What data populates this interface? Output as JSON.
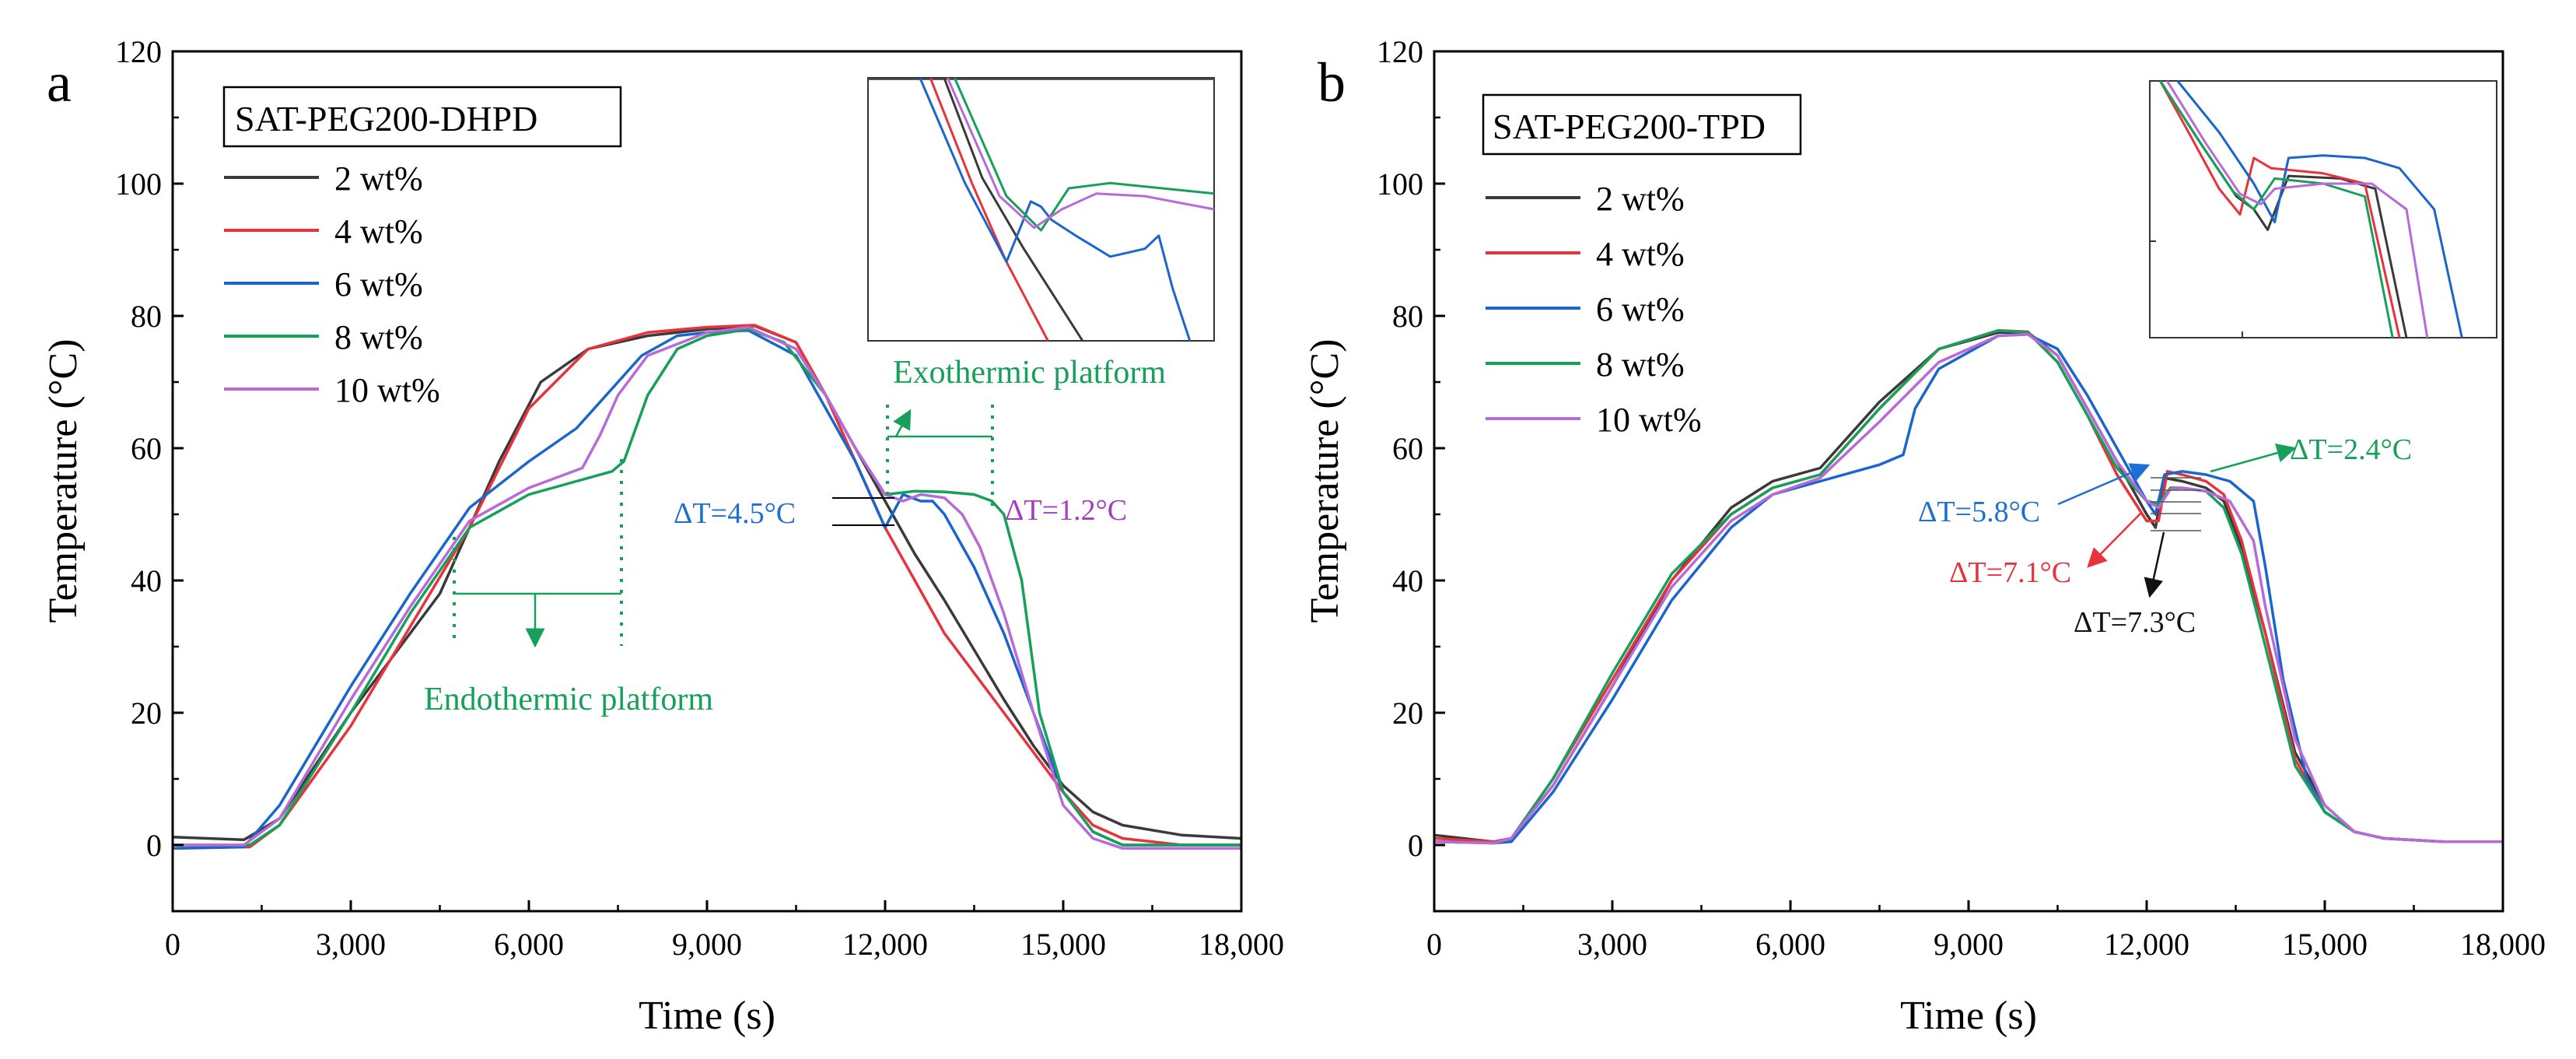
{
  "colors": {
    "2 wt%": "#3a3a3a",
    "4 wt%": "#e8323c",
    "6 wt%": "#1a66cc",
    "8 wt%": "#17a05a",
    "10 wt%": "#b86ad8",
    "axis": "#000000",
    "annot_blue": "#1f6fd0",
    "annot_green": "#17a05a",
    "annot_purple": "#a43cc4",
    "annot_red": "#e8323c",
    "annot_black": "#111111"
  },
  "chart_data": [
    {
      "type": "line",
      "panel_label": "a",
      "title": "SAT-PEG200-DHPD",
      "xlabel": "Time (s)",
      "ylabel": "Temperature (°C)",
      "xlim": [
        0,
        18000
      ],
      "ylim": [
        -10,
        120
      ],
      "xticks": [
        0,
        3000,
        6000,
        9000,
        12000,
        15000,
        18000
      ],
      "xtick_labels": [
        "0",
        "3,000",
        "6,000",
        "9,000",
        "12,000",
        "15,000",
        "18,000"
      ],
      "yticks": [
        0,
        20,
        40,
        60,
        80,
        100,
        120
      ],
      "ytick_labels": [
        "0",
        "20",
        "40",
        "60",
        "80",
        "100",
        "120"
      ],
      "legend": [
        "2 wt%",
        "4 wt%",
        "6 wt%",
        "8 wt%",
        "10 wt%"
      ],
      "series": [
        {
          "name": "2 wt%",
          "x": [
            0,
            1200,
            1800,
            3000,
            4500,
            5500,
            6200,
            7000,
            8000,
            9000,
            9800,
            10500,
            11000,
            11500,
            12000,
            12500,
            13000,
            14000,
            14500,
            15000,
            15500,
            16000,
            17000,
            18000
          ],
          "y": [
            1.2,
            0.8,
            4,
            20,
            38,
            58,
            70,
            75,
            77,
            78,
            78.5,
            76,
            68,
            60,
            52,
            44,
            37,
            22,
            15,
            9,
            5,
            3,
            1.5,
            1
          ]
        },
        {
          "name": "4 wt%",
          "x": [
            0,
            1300,
            1800,
            3000,
            4000,
            5000,
            6000,
            7000,
            8000,
            9000,
            9800,
            10500,
            11000,
            11500,
            12000,
            12500,
            13000,
            14000,
            15000,
            15500,
            16000,
            17000,
            18000
          ],
          "y": [
            -0.5,
            -0.3,
            3,
            18,
            33,
            48,
            66,
            75,
            77.5,
            78.3,
            78.6,
            76,
            68,
            58,
            48,
            40,
            32,
            20,
            8,
            3,
            1,
            0,
            0
          ]
        },
        {
          "name": "6 wt%",
          "x": [
            0,
            1200,
            1800,
            3000,
            4000,
            5000,
            6000,
            6800,
            7400,
            7900,
            8500,
            9000,
            9700,
            10500,
            11000,
            11500,
            12000,
            12300,
            12600,
            12800,
            13000,
            13500,
            14000,
            14500,
            15000,
            15500,
            16000,
            17000,
            18000
          ],
          "y": [
            -0.5,
            -0.3,
            6,
            24,
            38,
            51,
            58,
            63,
            69,
            74,
            77,
            77.5,
            77.8,
            74,
            66,
            58,
            48,
            53,
            52,
            52,
            50,
            42,
            32,
            20,
            8,
            2,
            0,
            0,
            0
          ]
        },
        {
          "name": "8 wt%",
          "x": [
            0,
            1300,
            1800,
            3000,
            4000,
            5000,
            6000,
            6800,
            7400,
            7600,
            8000,
            8500,
            9000,
            9700,
            10300,
            11000,
            11500,
            12000,
            12300,
            12500,
            13000,
            13500,
            13800,
            14000,
            14300,
            14600,
            15000,
            15500,
            16000,
            17000,
            18000
          ],
          "y": [
            0,
            0,
            3,
            20,
            35,
            48,
            53,
            55,
            56.5,
            58,
            68,
            75,
            77,
            78,
            76,
            68,
            60,
            53,
            53.3,
            53.5,
            53.4,
            53,
            52,
            50,
            40,
            20,
            8,
            2,
            0,
            0,
            0
          ]
        },
        {
          "name": "10 wt%",
          "x": [
            0,
            1200,
            1800,
            3000,
            4000,
            5000,
            6000,
            6900,
            7200,
            7500,
            8000,
            9000,
            9700,
            10500,
            11000,
            11500,
            12000,
            12300,
            12600,
            13000,
            13300,
            13600,
            14000,
            14500,
            15000,
            15500,
            16000,
            17000,
            18000
          ],
          "y": [
            0,
            0,
            4,
            22,
            36,
            49,
            54,
            57,
            62,
            68,
            74,
            77.5,
            78.3,
            75,
            68,
            60,
            53,
            52,
            53,
            52.5,
            50,
            45,
            35,
            20,
            6,
            1,
            -0.5,
            -0.5,
            -0.5
          ]
        }
      ],
      "inset": {
        "series": [
          {
            "name": "2 wt%",
            "x": [
              0.22,
              0.33,
              0.45,
              0.62
            ],
            "y": [
              1.05,
              0.62,
              0.35,
              -0.05
            ]
          },
          {
            "name": "4 wt%",
            "x": [
              0.18,
              0.3,
              0.4,
              0.52
            ],
            "y": [
              1.05,
              0.6,
              0.3,
              -0.05
            ]
          },
          {
            "name": "6 wt%",
            "x": [
              0.15,
              0.28,
              0.4,
              0.44,
              0.47,
              0.5,
              0.53,
              0.6,
              0.7,
              0.8,
              0.84,
              0.88,
              0.93
            ],
            "y": [
              1.02,
              0.6,
              0.3,
              0.43,
              0.53,
              0.51,
              0.46,
              0.4,
              0.32,
              0.35,
              0.4,
              0.2,
              0.0
            ]
          },
          {
            "name": "8 wt%",
            "x": [
              0.25,
              0.4,
              0.5,
              0.58,
              0.7,
              0.85,
              1.0
            ],
            "y": [
              1.05,
              0.55,
              0.42,
              0.58,
              0.6,
              0.58,
              0.56
            ]
          },
          {
            "name": "10 wt%",
            "x": [
              0.23,
              0.38,
              0.48,
              0.56,
              0.66,
              0.8,
              1.0
            ],
            "y": [
              1.05,
              0.55,
              0.43,
              0.5,
              0.56,
              0.55,
              0.5
            ]
          }
        ]
      },
      "annotations": {
        "endothermic": "Endothermic platform",
        "exothermic": "Exothermic platform",
        "dt_left": "ΔT=4.5°C",
        "dt_right": "ΔT=1.2°C"
      }
    },
    {
      "type": "line",
      "panel_label": "b",
      "title": "SAT-PEG200-TPD",
      "xlabel": "Time (s)",
      "ylabel": "Temperature (°C)",
      "xlim": [
        0,
        18000
      ],
      "ylim": [
        -10,
        120
      ],
      "xticks": [
        0,
        3000,
        6000,
        9000,
        12000,
        15000,
        18000
      ],
      "xtick_labels": [
        "0",
        "3,000",
        "6,000",
        "9,000",
        "12,000",
        "15,000",
        "18,000"
      ],
      "yticks": [
        0,
        20,
        40,
        60,
        80,
        100,
        120
      ],
      "ytick_labels": [
        "0",
        "20",
        "40",
        "60",
        "80",
        "100",
        "120"
      ],
      "legend": [
        "2 wt%",
        "4 wt%",
        "6 wt%",
        "8 wt%",
        "10 wt%"
      ],
      "series": [
        {
          "name": "2 wt%",
          "x": [
            0,
            1000,
            1300,
            2000,
            3000,
            4000,
            5000,
            5700,
            6500,
            7500,
            8500,
            9500,
            10000,
            10500,
            11000,
            11500,
            12000,
            12150,
            12300,
            12600,
            13000,
            13300,
            13600,
            14000,
            14500,
            15000,
            15500,
            16000,
            17000,
            18000
          ],
          "y": [
            1.5,
            0.5,
            1,
            9,
            24,
            40,
            51,
            55,
            57,
            67,
            75,
            77.5,
            77.5,
            74,
            66,
            58,
            50,
            48,
            55.5,
            55,
            54,
            52,
            45,
            32,
            14,
            6,
            2,
            1,
            0.5,
            0.5
          ]
        },
        {
          "name": "4 wt%",
          "x": [
            0,
            1000,
            1300,
            2000,
            3000,
            4000,
            5000,
            5700,
            6500,
            7500,
            8500,
            9500,
            10000,
            10500,
            11000,
            11500,
            12000,
            12200,
            12350,
            12600,
            13000,
            13300,
            13600,
            14000,
            14500,
            15000,
            15500,
            16000,
            17000,
            18000
          ],
          "y": [
            1,
            0.5,
            1,
            10,
            25,
            40,
            50,
            54,
            56,
            66,
            75,
            77.8,
            77.6,
            73,
            65,
            56,
            49,
            49,
            56.5,
            56,
            55,
            53,
            46,
            32,
            13,
            5,
            2,
            1,
            0.5,
            0.5
          ]
        },
        {
          "name": "6 wt%",
          "x": [
            0,
            1000,
            1300,
            2000,
            3000,
            4000,
            5000,
            5700,
            6500,
            7500,
            7900,
            8100,
            8500,
            9500,
            10000,
            10500,
            11000,
            11500,
            12000,
            12150,
            12300,
            12600,
            13000,
            13400,
            13800,
            14000,
            14300,
            14700,
            15000,
            15500,
            16000,
            17000,
            18000
          ],
          "y": [
            0.5,
            0.3,
            0.5,
            8,
            22,
            37,
            48,
            53,
            55,
            57.5,
            59,
            66,
            72,
            77,
            77.2,
            75,
            68,
            60,
            52,
            50,
            56,
            56.5,
            56,
            55,
            52,
            42,
            25,
            10,
            5,
            2,
            1,
            0.5,
            0.5
          ]
        },
        {
          "name": "8 wt%",
          "x": [
            0,
            1000,
            1300,
            2000,
            3000,
            4000,
            5000,
            5700,
            6500,
            7500,
            8500,
            9500,
            10000,
            10500,
            11000,
            11500,
            12000,
            12200,
            12400,
            12600,
            13000,
            13300,
            13600,
            14000,
            14500,
            15000,
            15500,
            16000,
            17000,
            18000
          ],
          "y": [
            0.5,
            0.3,
            1,
            10,
            26,
            41,
            50,
            54,
            56,
            66,
            75,
            77.8,
            77.5,
            73,
            65,
            57,
            52,
            51.6,
            54,
            54,
            53.5,
            51,
            44,
            30,
            12,
            5,
            2,
            1,
            0.5,
            0.5
          ]
        },
        {
          "name": "10 wt%",
          "x": [
            0,
            1000,
            1300,
            2000,
            3000,
            4000,
            5000,
            5700,
            6500,
            7500,
            8500,
            9500,
            10000,
            10500,
            11000,
            11500,
            12000,
            12200,
            12400,
            12600,
            13000,
            13400,
            13800,
            14000,
            14500,
            15000,
            15500,
            16000,
            17000,
            18000
          ],
          "y": [
            0.5,
            0.3,
            1,
            9,
            24,
            39,
            49,
            53,
            55.5,
            64,
            73,
            77,
            77.2,
            74,
            66,
            58,
            52,
            51,
            53.8,
            54,
            53.5,
            52,
            46,
            36,
            16,
            6,
            2,
            1,
            0.5,
            0.5
          ]
        }
      ],
      "inset": {
        "series": [
          {
            "name": "2 wt%",
            "x": [
              0.03,
              0.15,
              0.25,
              0.3,
              0.34,
              0.4,
              0.55,
              0.65,
              0.74
            ],
            "y": [
              1.02,
              0.75,
              0.55,
              0.5,
              0.42,
              0.63,
              0.62,
              0.58,
              0.0
            ]
          },
          {
            "name": "4 wt%",
            "x": [
              0.03,
              0.12,
              0.2,
              0.26,
              0.3,
              0.35,
              0.5,
              0.62,
              0.72
            ],
            "y": [
              1.02,
              0.78,
              0.58,
              0.48,
              0.7,
              0.66,
              0.64,
              0.6,
              0.0
            ]
          },
          {
            "name": "6 wt%",
            "x": [
              0.08,
              0.2,
              0.3,
              0.36,
              0.4,
              0.5,
              0.62,
              0.72,
              0.82,
              0.9
            ],
            "y": [
              1.02,
              0.8,
              0.6,
              0.45,
              0.7,
              0.71,
              0.7,
              0.66,
              0.5,
              0.0
            ]
          },
          {
            "name": "8 wt%",
            "x": [
              0.03,
              0.14,
              0.24,
              0.3,
              0.36,
              0.5,
              0.62,
              0.7
            ],
            "y": [
              1.02,
              0.77,
              0.57,
              0.5,
              0.62,
              0.6,
              0.55,
              0.0
            ]
          },
          {
            "name": "10 wt%",
            "x": [
              0.05,
              0.16,
              0.26,
              0.32,
              0.36,
              0.5,
              0.64,
              0.74,
              0.8
            ],
            "y": [
              1.02,
              0.76,
              0.56,
              0.52,
              0.58,
              0.6,
              0.6,
              0.5,
              0.0
            ]
          }
        ]
      },
      "annotations": {
        "dt_blue": "ΔT=5.8°C",
        "dt_green": "ΔT=2.4°C",
        "dt_red": "ΔT=7.1°C",
        "dt_black": "ΔT=7.3°C"
      }
    }
  ]
}
